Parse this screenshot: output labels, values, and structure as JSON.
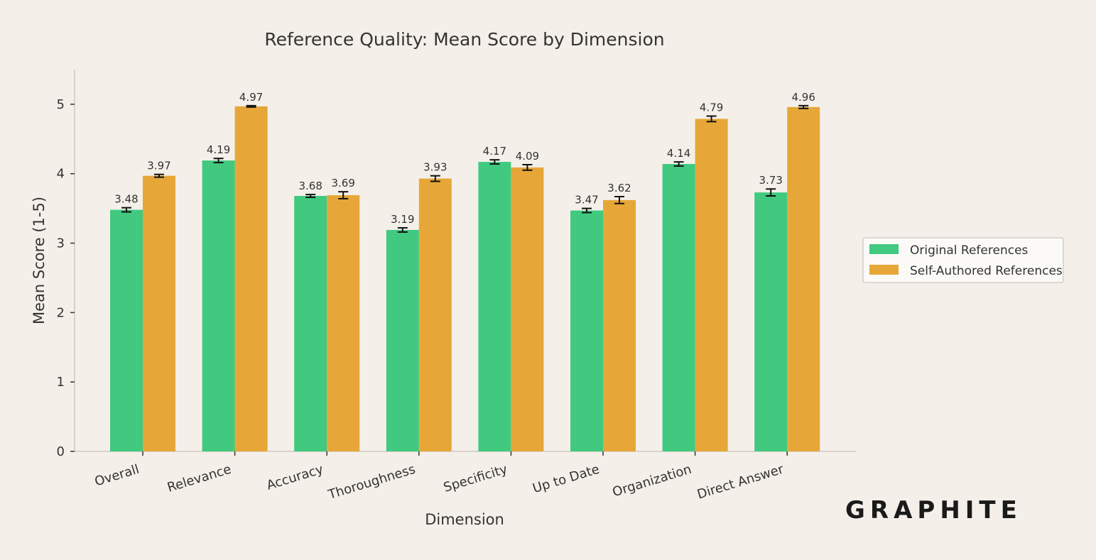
{
  "brand": {
    "logo_text": "GRAPHITE"
  },
  "chart_data": {
    "type": "bar",
    "title": "Reference Quality: Mean Score by Dimension",
    "xlabel": "Dimension",
    "ylabel": "Mean Score (1-5)",
    "ylim": [
      0,
      5.5
    ],
    "yticks": [
      0,
      1,
      2,
      3,
      4,
      5
    ],
    "grid": false,
    "legend_position": "right",
    "categories": [
      "Overall",
      "Relevance",
      "Accuracy",
      "Thoroughness",
      "Specificity",
      "Up to Date",
      "Organization",
      "Direct Answer"
    ],
    "series": [
      {
        "name": "Original References",
        "color": "#41c980",
        "values": [
          3.48,
          4.19,
          3.68,
          3.19,
          4.17,
          3.47,
          4.14,
          3.73
        ],
        "error": [
          0.03,
          0.03,
          0.02,
          0.03,
          0.03,
          0.03,
          0.03,
          0.05
        ]
      },
      {
        "name": "Self-Authored References",
        "color": "#e6a738",
        "values": [
          3.97,
          4.97,
          3.69,
          3.93,
          4.09,
          3.62,
          4.79,
          4.96
        ],
        "error": [
          0.02,
          0.01,
          0.05,
          0.04,
          0.04,
          0.05,
          0.04,
          0.02
        ]
      }
    ]
  }
}
